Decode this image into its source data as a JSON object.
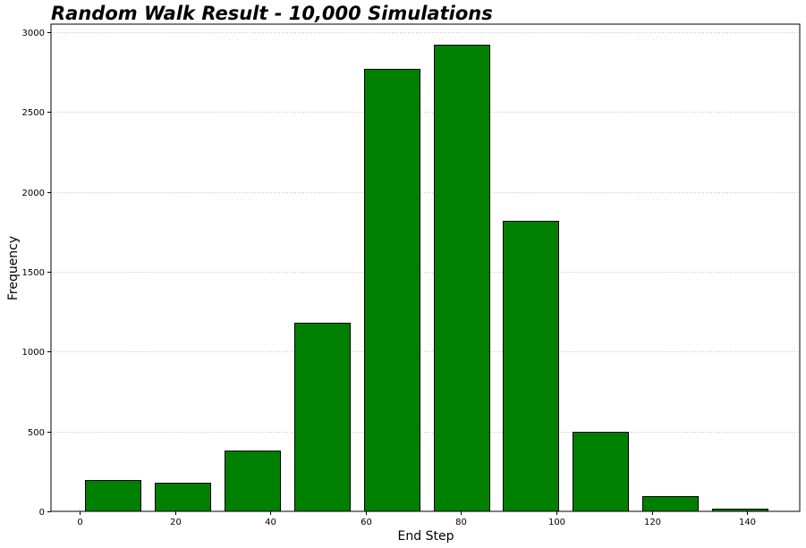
{
  "chart_data": {
    "type": "bar",
    "title": "Random Walk Result - 10,000 Simulations",
    "xlabel": "End Step",
    "ylabel": "Frequency",
    "xlim": [
      -6,
      151
    ],
    "ylim": [
      0,
      3050
    ],
    "x_ticks": [
      0,
      20,
      40,
      60,
      80,
      100,
      120,
      140
    ],
    "y_ticks": [
      0,
      500,
      1000,
      1500,
      2000,
      2500,
      3000
    ],
    "bins": [
      {
        "start": 1.2,
        "end": 12.9,
        "value": 195
      },
      {
        "start": 15.8,
        "end": 27.5,
        "value": 180
      },
      {
        "start": 30.4,
        "end": 42.1,
        "value": 380
      },
      {
        "start": 45.0,
        "end": 56.7,
        "value": 1180
      },
      {
        "start": 59.6,
        "end": 71.3,
        "value": 2770
      },
      {
        "start": 74.2,
        "end": 85.9,
        "value": 2920
      },
      {
        "start": 88.8,
        "end": 100.5,
        "value": 1820
      },
      {
        "start": 103.4,
        "end": 115.1,
        "value": 500
      },
      {
        "start": 118.0,
        "end": 129.7,
        "value": 95
      },
      {
        "start": 132.6,
        "end": 144.3,
        "value": 15
      }
    ],
    "bar_color": "#008000",
    "edge_color": "#000000",
    "grid": true,
    "grid_axis": "y",
    "grid_style": "dotted",
    "grid_color": "#c0c0c0"
  }
}
